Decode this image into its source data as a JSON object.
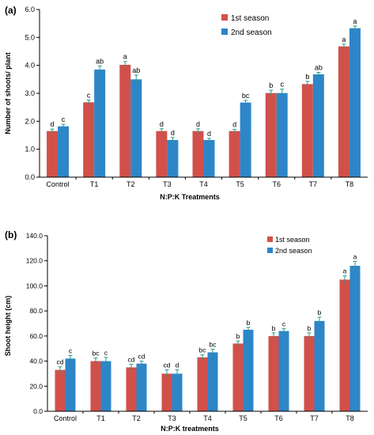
{
  "colors": {
    "season1": "#d2504a",
    "season2": "#2d86c8",
    "axis": "#000000",
    "error": "#2a9a8a"
  },
  "chart_data": [
    {
      "type": "bar",
      "panel_label": "(a)",
      "title": "",
      "xlabel": "N:P:K Treatments",
      "ylabel": "Number of shoots/ plant",
      "ylim": [
        0,
        6
      ],
      "yticks": [
        "0.0",
        "1.0",
        "2.0",
        "3.0",
        "4.0",
        "5.0",
        "6.0"
      ],
      "grid": false,
      "legend_position": "top-right",
      "categories": [
        "Control",
        "T1",
        "T2",
        "T3",
        "T4",
        "T5",
        "T6",
        "T7",
        "T8"
      ],
      "series": [
        {
          "name": "1st  season",
          "values": [
            1.65,
            2.68,
            4.02,
            1.65,
            1.65,
            1.65,
            3.01,
            3.33,
            4.68
          ],
          "errors": [
            0.07,
            0.08,
            0.12,
            0.08,
            0.08,
            0.06,
            0.1,
            0.1,
            0.08
          ],
          "letters": [
            "d",
            "c",
            "a",
            "d",
            "d",
            "d",
            "b",
            "b",
            "a"
          ]
        },
        {
          "name": "2nd season",
          "values": [
            1.82,
            3.85,
            3.5,
            1.33,
            1.33,
            2.67,
            3.01,
            3.68,
            5.33
          ],
          "errors": [
            0.07,
            0.13,
            0.15,
            0.09,
            0.06,
            0.08,
            0.14,
            0.07,
            0.08
          ],
          "letters": [
            "c",
            "ab",
            "ab",
            "d",
            "d",
            "bc",
            "c",
            "ab",
            "a"
          ]
        }
      ]
    },
    {
      "type": "bar",
      "panel_label": "(b)",
      "title": "",
      "xlabel": "N:P:K treatments",
      "ylabel": "Shoot height (cm)",
      "ylim": [
        0,
        140
      ],
      "yticks": [
        "0.0",
        "20.0",
        "40.0",
        "60.0",
        "80.0",
        "100.0",
        "120.0",
        "140.0"
      ],
      "grid": false,
      "legend_position": "top-right",
      "categories": [
        "Control",
        "T1",
        "T2",
        "T3",
        "T4",
        "T5",
        "T6",
        "T7",
        "T8"
      ],
      "series": [
        {
          "name": "1st  season",
          "values": [
            33,
            40,
            35,
            30,
            43,
            54,
            60,
            60,
            105
          ],
          "errors": [
            2.5,
            2.5,
            2.5,
            3,
            2,
            2,
            2.5,
            2.5,
            3
          ],
          "letters": [
            "cd",
            "bc",
            "cd",
            "cd",
            "bc",
            "b",
            "b",
            "b",
            "a"
          ]
        },
        {
          "name": "2nd season",
          "values": [
            42,
            40,
            38,
            30,
            47,
            65,
            64,
            72,
            116
          ],
          "errors": [
            2.5,
            3,
            2,
            3,
            2.5,
            2,
            2,
            3,
            3.5
          ],
          "letters": [
            "c",
            "c",
            "cd",
            "d",
            "bc",
            "b",
            "c",
            "b",
            "a"
          ]
        }
      ]
    }
  ]
}
